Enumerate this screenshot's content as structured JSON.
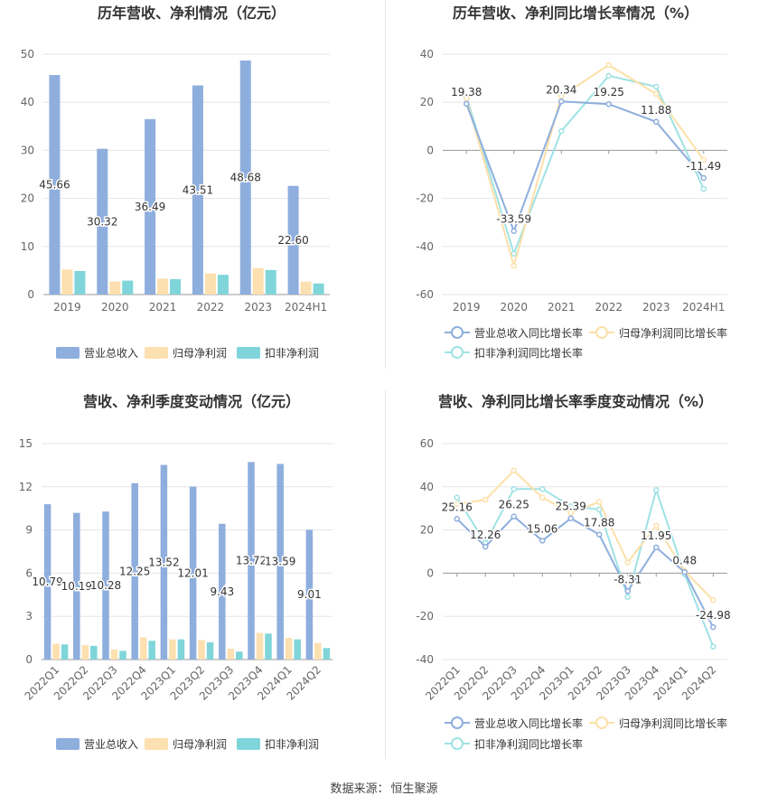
{
  "colors": {
    "revenue": "#8eaedd",
    "parent_profit": "#fde0b0",
    "deducted_profit": "#7fd5d9",
    "revenue_line": "#8eaedd",
    "parent_line": "#fde0a8",
    "deducted_line": "#9fe2e4",
    "grid": "#e6e6e6",
    "text": "#333333",
    "tick": "#666666"
  },
  "chart_data": [
    {
      "type": "bar",
      "title": "历年营收、净利情况（亿元）",
      "categories": [
        "2019",
        "2020",
        "2021",
        "2022",
        "2023",
        "2024H1"
      ],
      "ylim": [
        0,
        50
      ],
      "yticks": [
        0,
        10,
        20,
        30,
        40,
        50
      ],
      "grid": true,
      "legend_position": "bottom",
      "series": [
        {
          "name": "营业总收入",
          "values": [
            45.66,
            30.32,
            36.49,
            43.51,
            48.68,
            22.6
          ],
          "labels": [
            "45.66",
            "30.32",
            "36.49",
            "43.51",
            "48.68",
            "22.60"
          ]
        },
        {
          "name": "归母净利润",
          "values": [
            5.2,
            2.7,
            3.3,
            4.4,
            5.5,
            2.7
          ]
        },
        {
          "name": "扣非净利润",
          "values": [
            4.9,
            2.9,
            3.2,
            4.1,
            5.1,
            2.3
          ]
        }
      ]
    },
    {
      "type": "line",
      "title": "历年营收、净利同比增长率情况（%）",
      "categories": [
        "2019",
        "2020",
        "2021",
        "2022",
        "2023",
        "2024H1"
      ],
      "ylim": [
        -60,
        40
      ],
      "yticks": [
        -60,
        -40,
        -20,
        0,
        20,
        40
      ],
      "grid": true,
      "legend_position": "bottom",
      "series": [
        {
          "name": "营业总收入同比增长率",
          "values": [
            19.38,
            -33.59,
            20.34,
            19.25,
            11.88,
            -11.49
          ],
          "labels": [
            "19.38",
            "-33.59",
            "20.34",
            "19.25",
            "11.88",
            "-11.49"
          ]
        },
        {
          "name": "归母净利润同比增长率",
          "values": [
            21.5,
            -48.0,
            22.5,
            35.5,
            23.5,
            -4.0
          ]
        },
        {
          "name": "扣非净利润同比增长率",
          "values": [
            22.5,
            -43.0,
            8.0,
            31.0,
            26.5,
            -16.0
          ]
        }
      ]
    },
    {
      "type": "bar",
      "title": "营收、净利季度变动情况（亿元）",
      "categories": [
        "2022Q1",
        "2022Q2",
        "2022Q3",
        "2022Q4",
        "2023Q1",
        "2023Q2",
        "2023Q3",
        "2023Q4",
        "2024Q1",
        "2024Q2"
      ],
      "ylim": [
        0,
        15
      ],
      "yticks": [
        0,
        3,
        6,
        9,
        12,
        15
      ],
      "grid": true,
      "legend_position": "bottom",
      "series": [
        {
          "name": "营业总收入",
          "values": [
            10.79,
            10.19,
            10.28,
            12.25,
            13.52,
            12.01,
            9.43,
            13.72,
            13.59,
            9.01
          ],
          "labels": [
            "10.79",
            "10.19",
            "10.28",
            "12.25",
            "13.52",
            "12.01",
            "9.43",
            "13.72",
            "13.59",
            "9.01"
          ]
        },
        {
          "name": "归母净利润",
          "values": [
            1.1,
            1.0,
            0.7,
            1.55,
            1.4,
            1.35,
            0.75,
            1.85,
            1.5,
            1.15
          ]
        },
        {
          "name": "扣非净利润",
          "values": [
            1.05,
            0.95,
            0.6,
            1.3,
            1.4,
            1.2,
            0.55,
            1.8,
            1.4,
            0.8
          ]
        }
      ]
    },
    {
      "type": "line",
      "title": "营收、净利同比增长率季度变动情况（%）",
      "categories": [
        "2022Q1",
        "2022Q2",
        "2022Q3",
        "2022Q4",
        "2023Q1",
        "2023Q2",
        "2023Q3",
        "2023Q4",
        "2024Q1",
        "2024Q2"
      ],
      "ylim": [
        -40,
        60
      ],
      "yticks": [
        -40,
        -20,
        0,
        20,
        40,
        60
      ],
      "grid": true,
      "legend_position": "bottom",
      "series": [
        {
          "name": "营业总收入同比增长率",
          "values": [
            25.16,
            12.26,
            26.25,
            15.06,
            25.39,
            17.88,
            -8.31,
            11.95,
            0.48,
            -24.98
          ],
          "labels": [
            "25.16",
            "12.26",
            "26.25",
            "15.06",
            "25.39",
            "17.88",
            "-8.31",
            "11.95",
            "0.48",
            "-24.98"
          ]
        },
        {
          "name": "归母净利润同比增长率",
          "values": [
            32.0,
            34.0,
            47.5,
            35.0,
            28.0,
            33.0,
            5.0,
            22.0,
            1.0,
            -12.5
          ]
        },
        {
          "name": "扣非净利润同比增长率",
          "values": [
            35.0,
            14.0,
            39.0,
            39.0,
            31.0,
            29.5,
            -11.0,
            38.5,
            -0.5,
            -34.0
          ]
        }
      ]
    }
  ],
  "source": {
    "label": "数据来源：",
    "name": "恒生聚源"
  }
}
